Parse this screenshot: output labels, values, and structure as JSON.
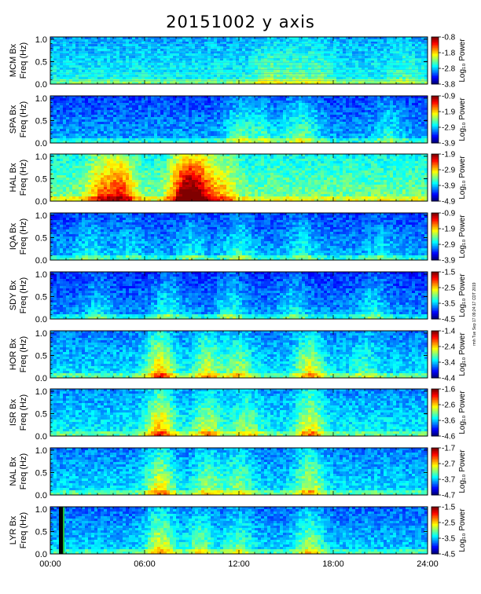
{
  "title": "20151002 y axis",
  "stamp": "rmh Tue Sep 17 09:24:17 CDT 2019",
  "chart_data": {
    "type": "heatmap",
    "title": "20151002 y axis",
    "x_ticks": [
      "00:00",
      "06:00",
      "12:00",
      "18:00",
      "24:00"
    ],
    "x_range_hours": [
      0,
      24
    ],
    "y_range_hz": [
      0,
      1.05
    ],
    "y_ticks": [
      "1.0",
      "0.5",
      "0.0"
    ],
    "colorbar_label": "Log₁₀ Power",
    "panels": [
      {
        "station": "MCM",
        "ylabel_line1": "MCM Bx",
        "ylabel_line2": "Freq (Hz)",
        "cb_ticks": [
          "-0.8",
          "-1.8",
          "-2.8",
          "-3.8"
        ],
        "cb_min": -3.8,
        "cb_max": -0.8
      },
      {
        "station": "SPA",
        "ylabel_line1": "SPA Bx",
        "ylabel_line2": "Freq (Hz)",
        "cb_ticks": [
          "-0.9",
          "-1.9",
          "-2.9",
          "-3.9"
        ],
        "cb_min": -3.9,
        "cb_max": -0.9
      },
      {
        "station": "HAL",
        "ylabel_line1": "HAL Bx",
        "ylabel_line2": "Freq (Hz)",
        "cb_ticks": [
          "-1.9",
          "-2.9",
          "-3.9",
          "-4.9"
        ],
        "cb_min": -4.9,
        "cb_max": -1.9
      },
      {
        "station": "IQA",
        "ylabel_line1": "IQA Bx",
        "ylabel_line2": "Freq (Hz)",
        "cb_ticks": [
          "-0.9",
          "-1.9",
          "-2.9",
          "-3.9"
        ],
        "cb_min": -3.9,
        "cb_max": -0.9
      },
      {
        "station": "SDY",
        "ylabel_line1": "SDY Bx",
        "ylabel_line2": "Freq (Hz)",
        "cb_ticks": [
          "-1.5",
          "-2.5",
          "-3.5",
          "-4.5"
        ],
        "cb_min": -4.5,
        "cb_max": -1.5
      },
      {
        "station": "HOR",
        "ylabel_line1": "HOR Bx",
        "ylabel_line2": "Freq (Hz)",
        "cb_ticks": [
          "-1.4",
          "-2.4",
          "-3.4",
          "-4.4"
        ],
        "cb_min": -4.4,
        "cb_max": -1.4
      },
      {
        "station": "ISR",
        "ylabel_line1": "ISR Bx",
        "ylabel_line2": "Freq (Hz)",
        "cb_ticks": [
          "-1.6",
          "-2.6",
          "-3.6",
          "-4.6"
        ],
        "cb_min": -4.6,
        "cb_max": -1.6
      },
      {
        "station": "NAL",
        "ylabel_line1": "NAL Bx",
        "ylabel_line2": "Freq (Hz)",
        "cb_ticks": [
          "-1.7",
          "-2.7",
          "-3.7",
          "-4.7"
        ],
        "cb_min": -4.7,
        "cb_max": -1.7
      },
      {
        "station": "LYR",
        "ylabel_line1": "LYR Bx",
        "ylabel_line2": "Freq (Hz)",
        "cb_ticks": [
          "-1.5",
          "-2.5",
          "-3.5",
          "-4.5"
        ],
        "cb_min": -4.5,
        "cb_max": -1.5
      }
    ]
  }
}
